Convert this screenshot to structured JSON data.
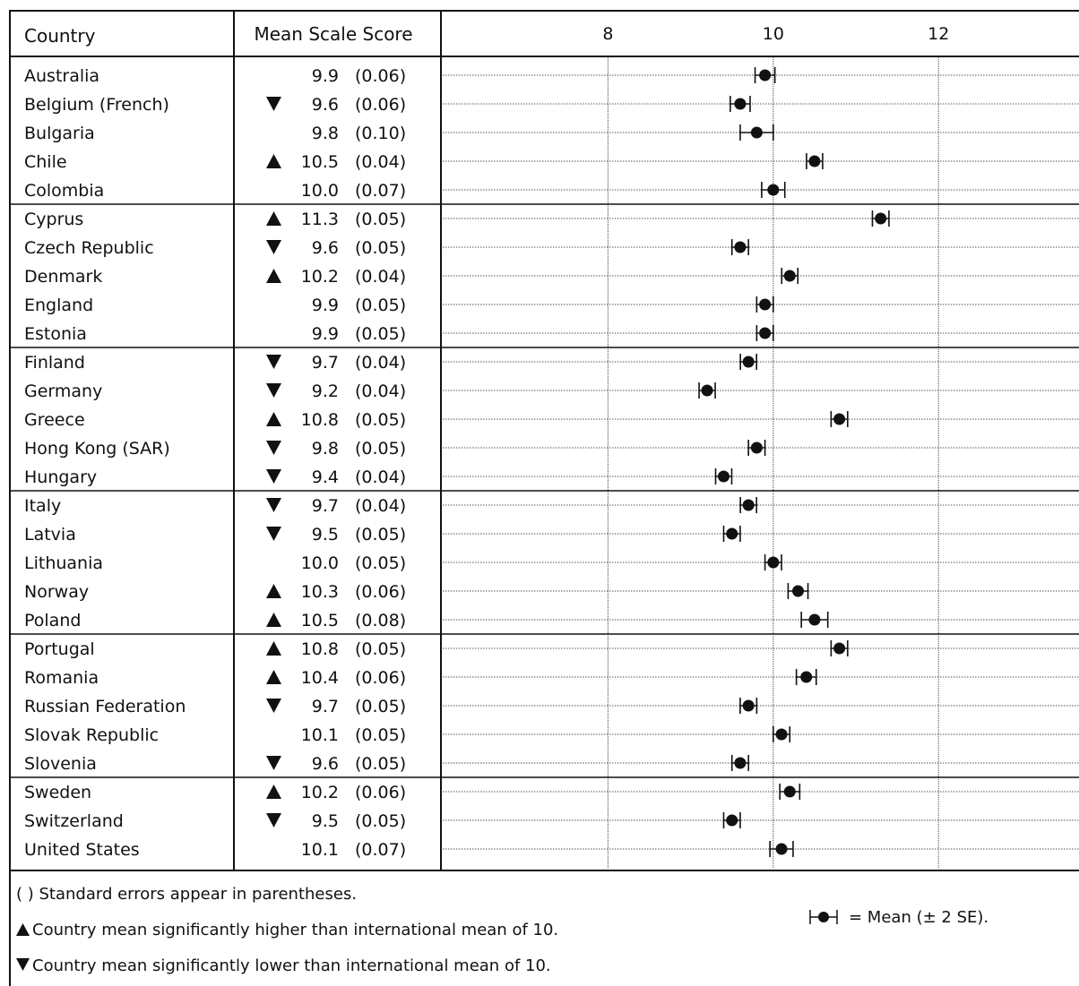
{
  "chart_data": {
    "type": "dot-plot",
    "title": "",
    "headers": {
      "country": "Country",
      "score": "Mean Scale Score"
    },
    "xaxis": {
      "ticks": [
        8,
        10,
        12
      ],
      "range": [
        6,
        13.7
      ],
      "grid": true
    },
    "reference_value": 10,
    "error_multiplier": 2,
    "rows": [
      {
        "country": "Australia",
        "mean": 9.9,
        "se": 0.06,
        "mean_text": "9.9",
        "se_text": "(0.06)",
        "sig": ""
      },
      {
        "country": "Belgium (French)",
        "mean": 9.6,
        "se": 0.06,
        "mean_text": "9.6",
        "se_text": "(0.06)",
        "sig": "lower"
      },
      {
        "country": "Bulgaria",
        "mean": 9.8,
        "se": 0.1,
        "mean_text": "9.8",
        "se_text": "(0.10)",
        "sig": ""
      },
      {
        "country": "Chile",
        "mean": 10.5,
        "se": 0.04,
        "mean_text": "10.5",
        "se_text": "(0.04)",
        "sig": "higher"
      },
      {
        "country": "Colombia",
        "mean": 10.0,
        "se": 0.07,
        "mean_text": "10.0",
        "se_text": "(0.07)",
        "sig": ""
      },
      {
        "country": "Cyprus",
        "mean": 11.3,
        "se": 0.05,
        "mean_text": "11.3",
        "se_text": "(0.05)",
        "sig": "higher"
      },
      {
        "country": "Czech Republic",
        "mean": 9.6,
        "se": 0.05,
        "mean_text": "9.6",
        "se_text": "(0.05)",
        "sig": "lower"
      },
      {
        "country": "Denmark",
        "mean": 10.2,
        "se": 0.04,
        "mean_text": "10.2",
        "se_text": "(0.04)",
        "sig": "higher"
      },
      {
        "country": "England",
        "mean": 9.9,
        "se": 0.05,
        "mean_text": "9.9",
        "se_text": "(0.05)",
        "sig": ""
      },
      {
        "country": "Estonia",
        "mean": 9.9,
        "se": 0.05,
        "mean_text": "9.9",
        "se_text": "(0.05)",
        "sig": ""
      },
      {
        "country": "Finland",
        "mean": 9.7,
        "se": 0.04,
        "mean_text": "9.7",
        "se_text": "(0.04)",
        "sig": "lower"
      },
      {
        "country": "Germany",
        "mean": 9.2,
        "se": 0.04,
        "mean_text": "9.2",
        "se_text": "(0.04)",
        "sig": "lower"
      },
      {
        "country": "Greece",
        "mean": 10.8,
        "se": 0.05,
        "mean_text": "10.8",
        "se_text": "(0.05)",
        "sig": "higher"
      },
      {
        "country": "Hong Kong (SAR)",
        "mean": 9.8,
        "se": 0.05,
        "mean_text": "9.8",
        "se_text": "(0.05)",
        "sig": "lower"
      },
      {
        "country": "Hungary",
        "mean": 9.4,
        "se": 0.04,
        "mean_text": "9.4",
        "se_text": "(0.04)",
        "sig": "lower"
      },
      {
        "country": "Italy",
        "mean": 9.7,
        "se": 0.04,
        "mean_text": "9.7",
        "se_text": "(0.04)",
        "sig": "lower"
      },
      {
        "country": "Latvia",
        "mean": 9.5,
        "se": 0.05,
        "mean_text": "9.5",
        "se_text": "(0.05)",
        "sig": "lower"
      },
      {
        "country": "Lithuania",
        "mean": 10.0,
        "se": 0.05,
        "mean_text": "10.0",
        "se_text": "(0.05)",
        "sig": ""
      },
      {
        "country": "Norway",
        "mean": 10.3,
        "se": 0.06,
        "mean_text": "10.3",
        "se_text": "(0.06)",
        "sig": "higher"
      },
      {
        "country": "Poland",
        "mean": 10.5,
        "se": 0.08,
        "mean_text": "10.5",
        "se_text": "(0.08)",
        "sig": "higher"
      },
      {
        "country": "Portugal",
        "mean": 10.8,
        "se": 0.05,
        "mean_text": "10.8",
        "se_text": "(0.05)",
        "sig": "higher"
      },
      {
        "country": "Romania",
        "mean": 10.4,
        "se": 0.06,
        "mean_text": "10.4",
        "se_text": "(0.06)",
        "sig": "higher"
      },
      {
        "country": "Russian Federation",
        "mean": 9.7,
        "se": 0.05,
        "mean_text": "9.7",
        "se_text": "(0.05)",
        "sig": "lower"
      },
      {
        "country": "Slovak Republic",
        "mean": 10.1,
        "se": 0.05,
        "mean_text": "10.1",
        "se_text": "(0.05)",
        "sig": ""
      },
      {
        "country": "Slovenia",
        "mean": 9.6,
        "se": 0.05,
        "mean_text": "9.6",
        "se_text": "(0.05)",
        "sig": "lower"
      },
      {
        "country": "Sweden",
        "mean": 10.2,
        "se": 0.06,
        "mean_text": "10.2",
        "se_text": "(0.06)",
        "sig": "higher"
      },
      {
        "country": "Switzerland",
        "mean": 9.5,
        "se": 0.05,
        "mean_text": "9.5",
        "se_text": "(0.05)",
        "sig": "lower"
      },
      {
        "country": "United States",
        "mean": 10.1,
        "se": 0.07,
        "mean_text": "10.1",
        "se_text": "(0.07)",
        "sig": ""
      }
    ],
    "row_groups": [
      5,
      5,
      5,
      5,
      5,
      3
    ],
    "notes": {
      "se_note": "( ) Standard errors appear in parentheses.",
      "higher_note": "Country mean significantly higher than international mean of 10.",
      "lower_note": "Country mean significantly lower than international mean of 10.",
      "mean_note": "= Mean (± 2 SE)."
    }
  }
}
